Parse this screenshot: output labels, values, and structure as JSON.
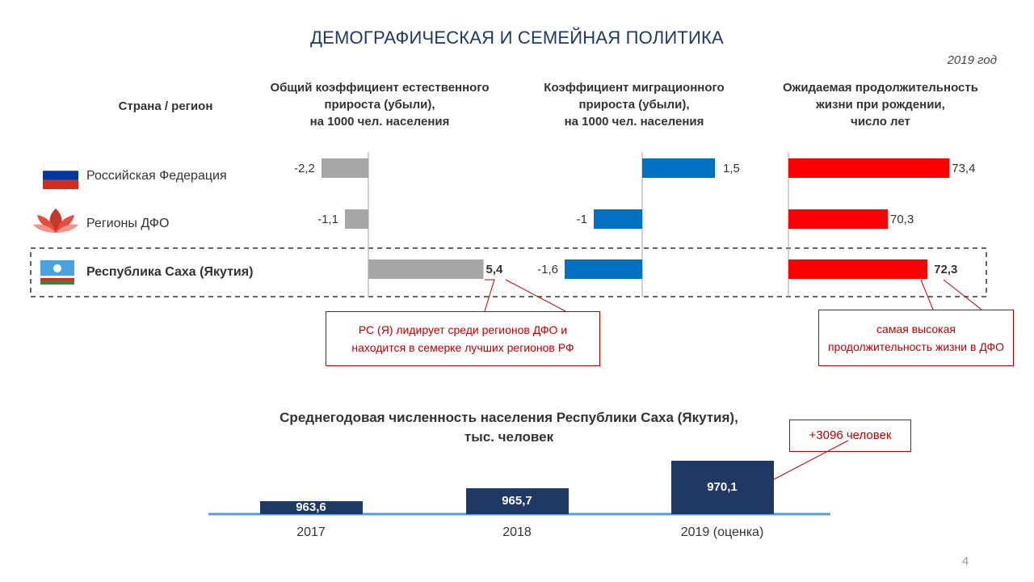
{
  "title": "ДЕМОГРАФИЧЕСКАЯ И СЕМЕЙНАЯ ПОЛИТИКА",
  "year_note": "2019 год",
  "header_region": "Страна / регион",
  "regions": [
    {
      "name": "Российская Федерация",
      "flag": "russia-flag-icon",
      "highlight": false
    },
    {
      "name": "Регионы ДФО",
      "flag": "dfo-logo-icon",
      "highlight": false
    },
    {
      "name": "Республика Саха (Якутия)",
      "flag": "yakutia-flag-icon",
      "highlight": true
    }
  ],
  "colors": {
    "natural": "#a6a6a6",
    "migration": "#0070c0",
    "life": "#ff0000",
    "callout": "#c00000",
    "population": "#1f3864",
    "baseline": "#5b9bd5"
  },
  "chart_data": [
    {
      "type": "bar",
      "orientation": "horizontal",
      "title": "Общий коэффициент естественного прироста (убыли), на 1000 чел. населения",
      "title_lines": [
        "Общий коэффициент естественного",
        "прироста (убыли),",
        "на 1000 чел. населения"
      ],
      "categories": [
        "Российская Федерация",
        "Регионы ДФО",
        "Республика Саха (Якутия)"
      ],
      "values": [
        -2.2,
        -1.1,
        5.4
      ],
      "labels": [
        "-2,2",
        "-1,1",
        "5,4"
      ]
    },
    {
      "type": "bar",
      "orientation": "horizontal",
      "title": "Коэффициент миграционного прироста (убыли), на 1000 чел. населения",
      "title_lines": [
        "Коэффициент миграционного",
        "прироста (убыли),",
        "на 1000 чел. населения"
      ],
      "categories": [
        "Российская Федерация",
        "Регионы ДФО",
        "Республика Саха (Якутия)"
      ],
      "values": [
        1.5,
        -1,
        -1.6
      ],
      "labels": [
        "1,5",
        "-1",
        "-1,6"
      ]
    },
    {
      "type": "bar",
      "orientation": "horizontal",
      "title": "Ожидаемая продолжительность жизни при рождении, число лет",
      "title_lines": [
        "Ожидаемая продолжительность",
        "жизни при рождении,",
        "число лет"
      ],
      "categories": [
        "Российская Федерация",
        "Регионы ДФО",
        "Республика Саха (Якутия)"
      ],
      "values": [
        73.4,
        70.3,
        72.3
      ],
      "labels": [
        "73,4",
        "70,3",
        "72,3"
      ]
    },
    {
      "type": "bar",
      "title": "Среднегодовая численность населения Республики Саха (Якутия), тыс. человек",
      "title_lines": [
        "Среднегодовая численность населения Республики Саха (Якутия),",
        "тыс. человек"
      ],
      "categories": [
        "2017",
        "2018",
        "2019 (оценка)"
      ],
      "values": [
        963.6,
        965.7,
        970.1
      ],
      "labels": [
        "963,6",
        "965,7",
        "970,1"
      ]
    }
  ],
  "callouts": {
    "natural": [
      "РС (Я) лидирует среди регионов ДФО и",
      "находится в семерке лучших регионов РФ"
    ],
    "life": [
      "самая высокая",
      "продолжительность жизни в ДФО"
    ],
    "population": "+3096 человек"
  },
  "page_number": "4"
}
